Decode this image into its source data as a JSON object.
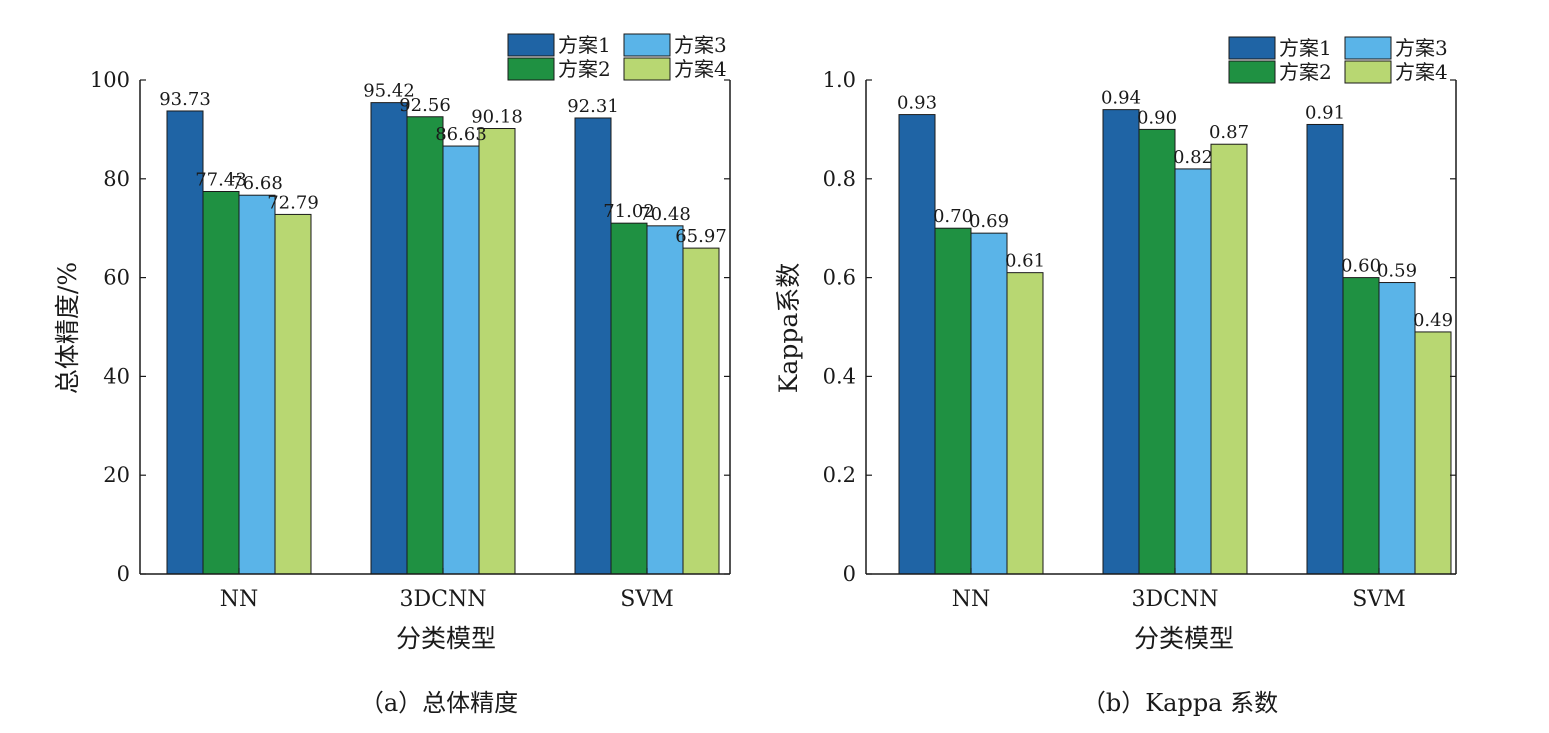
{
  "colors": {
    "scheme1": "#1f64a5",
    "scheme2": "#1f9142",
    "scheme3": "#5ab4e8",
    "scheme4": "#b8d772"
  },
  "chart_data": [
    {
      "type": "bar",
      "caption": "（a）总体精度",
      "xlabel": "分类模型",
      "ylabel": "总体精度/%",
      "categories": [
        "NN",
        "3DCNN",
        "SVM"
      ],
      "ylim": [
        0,
        100
      ],
      "yticks": [
        0,
        20,
        40,
        60,
        80,
        100
      ],
      "ytick_labels": [
        "0",
        "20",
        "40",
        "60",
        "80",
        "100"
      ],
      "legend": "top-right, 2 columns",
      "grid": false,
      "series": [
        {
          "name": "方案1",
          "values": [
            93.73,
            95.42,
            92.31
          ],
          "labels": [
            "93.73",
            "95.42",
            "92.31"
          ]
        },
        {
          "name": "方案2",
          "values": [
            77.43,
            92.56,
            71.02
          ],
          "labels": [
            "77.43",
            "92.56",
            "71.02"
          ]
        },
        {
          "name": "方案3",
          "values": [
            76.68,
            86.63,
            70.48
          ],
          "labels": [
            "76.68",
            "86.63",
            "70.48"
          ]
        },
        {
          "name": "方案4",
          "values": [
            72.79,
            90.18,
            65.97
          ],
          "labels": [
            "72.79",
            "90.18",
            "65.97"
          ]
        }
      ]
    },
    {
      "type": "bar",
      "caption": "（b）Kappa 系数",
      "xlabel": "分类模型",
      "ylabel": "Kappa系数",
      "categories": [
        "NN",
        "3DCNN",
        "SVM"
      ],
      "ylim": [
        0,
        1.0
      ],
      "yticks": [
        0,
        0.2,
        0.4,
        0.6,
        0.8,
        1.0
      ],
      "ytick_labels": [
        "0",
        "0.2",
        "0.4",
        "0.6",
        "0.8",
        "1.0"
      ],
      "legend": "top-right, 2 columns",
      "grid": false,
      "series": [
        {
          "name": "方案1",
          "values": [
            0.93,
            0.94,
            0.91
          ],
          "labels": [
            "0.93",
            "0.94",
            "0.91"
          ]
        },
        {
          "name": "方案2",
          "values": [
            0.7,
            0.9,
            0.6
          ],
          "labels": [
            "0.70",
            "0.90",
            "0.60"
          ]
        },
        {
          "name": "方案3",
          "values": [
            0.69,
            0.82,
            0.59
          ],
          "labels": [
            "0.69",
            "0.82",
            "0.59"
          ]
        },
        {
          "name": "方案4",
          "values": [
            0.61,
            0.87,
            0.49
          ],
          "labels": [
            "0.61",
            "0.87",
            "0.49"
          ]
        }
      ]
    }
  ]
}
